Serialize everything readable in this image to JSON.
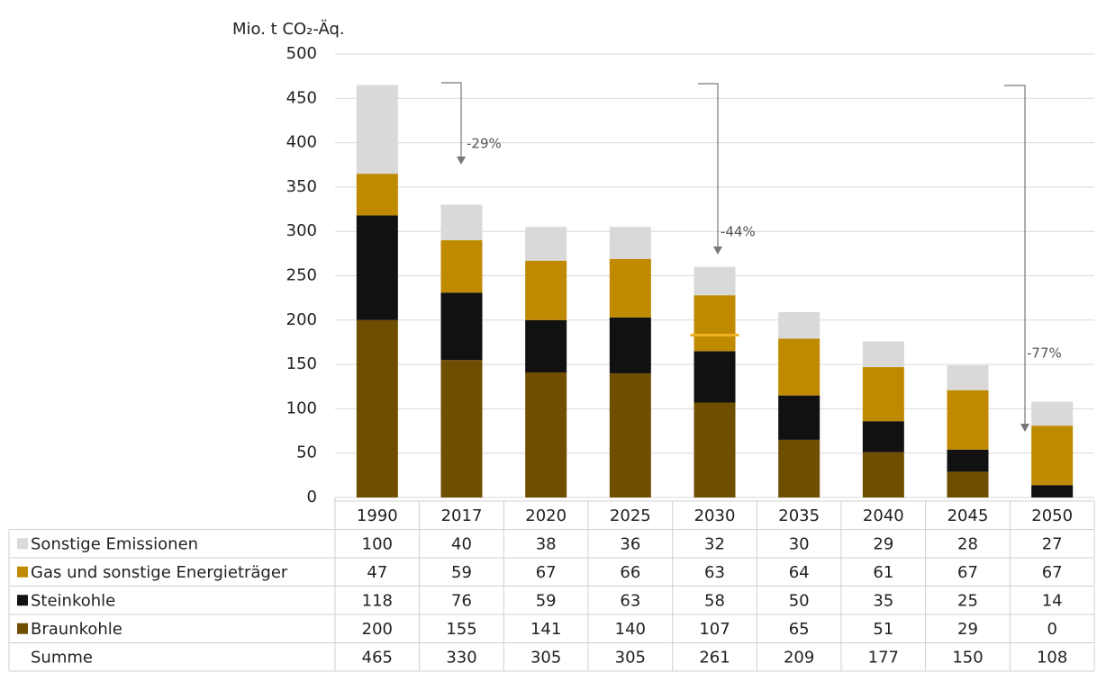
{
  "chart_data": {
    "type": "stacked_bar",
    "y_label": "Mio. t CO₂-Äq.",
    "categories": [
      "1990",
      "2017",
      "2020",
      "2025",
      "2030",
      "2035",
      "2040",
      "2045",
      "2050"
    ],
    "series": [
      {
        "name": "Sonstige Emissionen",
        "color": "#d9d9d9",
        "values": [
          100,
          40,
          38,
          36,
          32,
          30,
          29,
          28,
          27
        ]
      },
      {
        "name": "Gas und sonstige Energieträger",
        "color": "#c08a00",
        "values": [
          47,
          59,
          67,
          66,
          63,
          64,
          61,
          67,
          67
        ]
      },
      {
        "name": "Steinkohle",
        "color": "#111111",
        "values": [
          118,
          76,
          59,
          63,
          58,
          50,
          35,
          25,
          14
        ]
      },
      {
        "name": "Braunkohle",
        "color": "#6f4e00",
        "values": [
          200,
          155,
          141,
          140,
          107,
          65,
          51,
          29,
          0
        ]
      }
    ],
    "totals": {
      "name": "Summe",
      "values": [
        465,
        330,
        305,
        305,
        261,
        209,
        177,
        150,
        108
      ]
    },
    "ylim": [
      0,
      500
    ],
    "yticks": [
      0,
      50,
      100,
      150,
      200,
      250,
      300,
      350,
      400,
      450,
      500
    ],
    "grid": true,
    "annotations": [
      "-29%",
      "-44%",
      "-77%"
    ],
    "markers": [
      {
        "x": "2030",
        "value": 183,
        "color": "#f0b323"
      }
    ]
  }
}
